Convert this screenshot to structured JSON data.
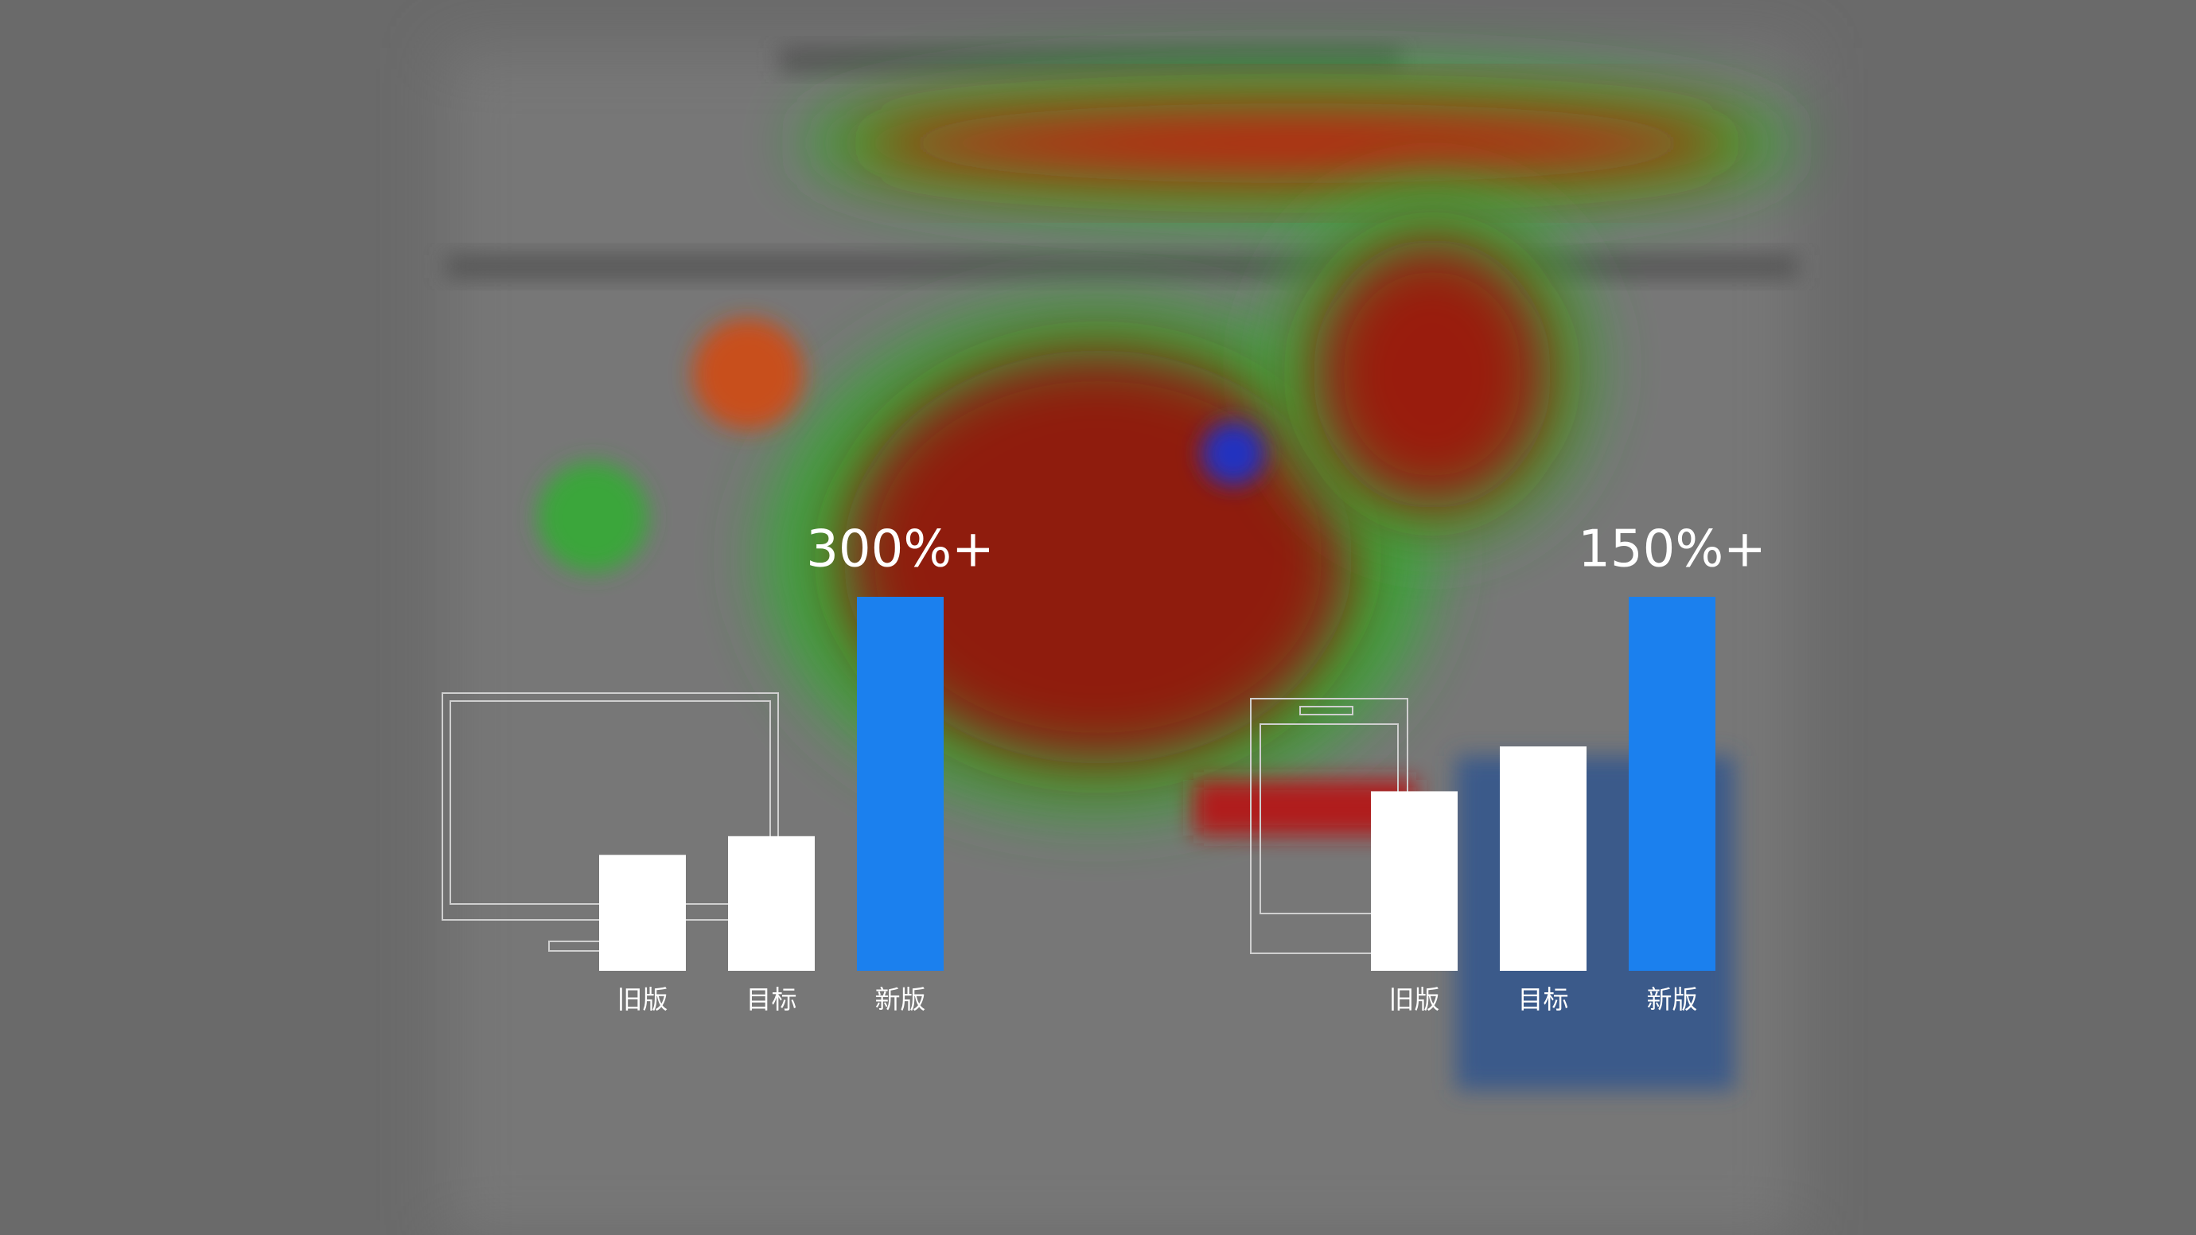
{
  "chart_data": [
    {
      "type": "bar",
      "annotation": "300%+",
      "categories": [
        "旧版",
        "目标",
        "新版"
      ],
      "values": [
        31,
        36,
        100
      ],
      "colors": [
        "#ffffff",
        "#ffffff",
        "#1b80ee"
      ],
      "ylim": [
        0,
        100
      ]
    },
    {
      "type": "bar",
      "annotation": "150%+",
      "categories": [
        "旧版",
        "目标",
        "新版"
      ],
      "values": [
        48,
        60,
        100
      ],
      "colors": [
        "#ffffff",
        "#ffffff",
        "#1b80ee"
      ],
      "ylim": [
        0,
        100
      ]
    }
  ]
}
